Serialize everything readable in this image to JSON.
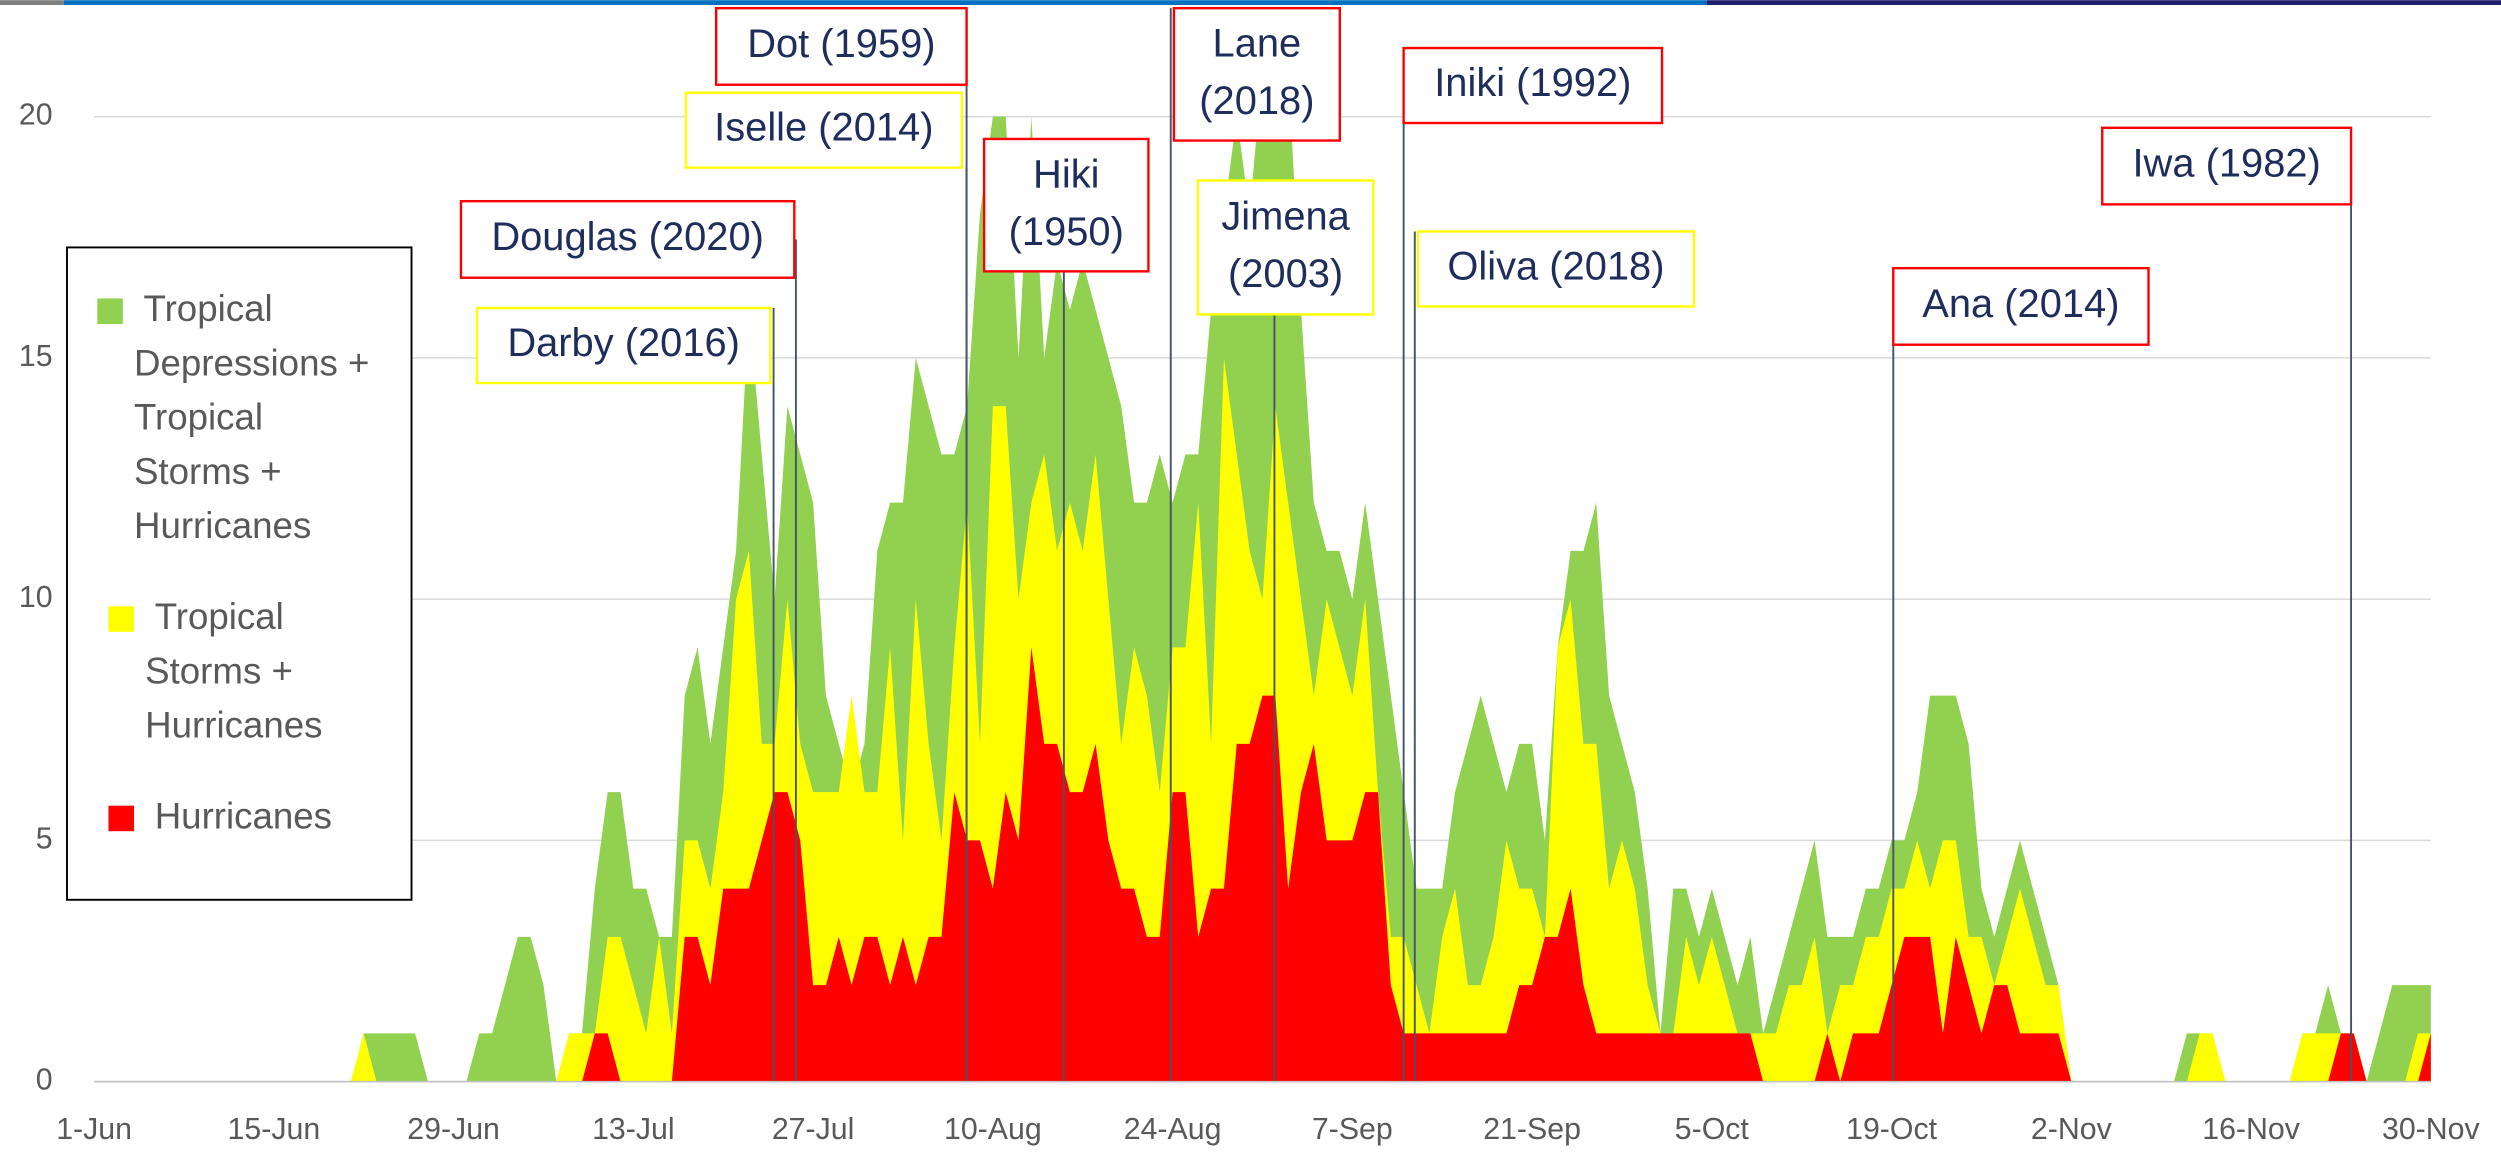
{
  "chart_data": {
    "type": "area",
    "categories": [
      "1-Jun",
      null,
      null,
      null,
      null,
      null,
      null,
      null,
      null,
      null,
      null,
      null,
      null,
      null,
      "15-Jun",
      null,
      null,
      null,
      null,
      null,
      null,
      null,
      null,
      null,
      null,
      null,
      null,
      null,
      "29-Jun",
      null,
      null,
      null,
      null,
      null,
      null,
      null,
      null,
      null,
      null,
      null,
      null,
      null,
      "13-Jul",
      null,
      null,
      null,
      null,
      null,
      null,
      null,
      null,
      null,
      null,
      null,
      null,
      null,
      "27-Jul",
      null,
      null,
      null,
      null,
      null,
      null,
      null,
      null,
      null,
      null,
      null,
      null,
      null,
      "10-Aug",
      null,
      null,
      null,
      null,
      null,
      null,
      null,
      null,
      null,
      null,
      null,
      null,
      null,
      "24-Aug",
      null,
      null,
      null,
      null,
      null,
      null,
      null,
      null,
      null,
      null,
      null,
      null,
      null,
      "7-Sep",
      null,
      null,
      null,
      null,
      null,
      null,
      null,
      null,
      null,
      null,
      null,
      null,
      null,
      "21-Sep",
      null,
      null,
      null,
      null,
      null,
      null,
      null,
      null,
      null,
      null,
      null,
      null,
      null,
      "5-Oct",
      null,
      null,
      null,
      null,
      null,
      null,
      null,
      null,
      null,
      null,
      null,
      null,
      null,
      "19-Oct",
      null,
      null,
      null,
      null,
      null,
      null,
      null,
      null,
      null,
      null,
      null,
      null,
      null,
      "2-Nov",
      null,
      null,
      null,
      null,
      null,
      null,
      null,
      null,
      null,
      null,
      null,
      null,
      null,
      "16-Nov",
      null,
      null,
      null,
      null,
      null,
      null,
      null,
      null,
      null,
      null,
      null,
      null,
      null,
      "30-Nov"
    ],
    "series": [
      {
        "name": "Tropical Depressions + Tropical Storms + Hurricanes",
        "color": "#92d050",
        "values": [
          0,
          0,
          0,
          0,
          0,
          0,
          0,
          0,
          0,
          0,
          0,
          0,
          0,
          0,
          0,
          0,
          0,
          0,
          0,
          0,
          0,
          1,
          1,
          1,
          1,
          1,
          0,
          0,
          0,
          0,
          1,
          1,
          2,
          3,
          3,
          2,
          0,
          1,
          1,
          4,
          6,
          6,
          4,
          4,
          3,
          3,
          8,
          9,
          7,
          9,
          11,
          16,
          13,
          10,
          14,
          13,
          12,
          8,
          7,
          6,
          7,
          11,
          12,
          12,
          15,
          14,
          13,
          13,
          14,
          18,
          20,
          20,
          15,
          20,
          15,
          17,
          16,
          17,
          16,
          15,
          14,
          12,
          12,
          13,
          12,
          13,
          13,
          16,
          18,
          20,
          18,
          21,
          20,
          21,
          16,
          12,
          11,
          11,
          10,
          12,
          10,
          8,
          6,
          4,
          4,
          4,
          6,
          7,
          8,
          7,
          6,
          7,
          7,
          5,
          9,
          11,
          11,
          12,
          8,
          7,
          6,
          4,
          1,
          4,
          4,
          3,
          4,
          3,
          2,
          3,
          1,
          2,
          3,
          4,
          5,
          3,
          3,
          3,
          4,
          4,
          5,
          5,
          6,
          8,
          8,
          8,
          7,
          4,
          3,
          4,
          5,
          4,
          3,
          2,
          0,
          0,
          0,
          0,
          0,
          0,
          0,
          0,
          0,
          1,
          1,
          1,
          0,
          0,
          0,
          0,
          0,
          0,
          1,
          1,
          2,
          1,
          1,
          0,
          1,
          2,
          2,
          2,
          2
        ]
      },
      {
        "name": "Tropical Storms + Hurricanes",
        "color": "#ffff00",
        "values": [
          0,
          0,
          0,
          0,
          0,
          0,
          0,
          0,
          0,
          0,
          0,
          0,
          0,
          0,
          0,
          0,
          0,
          0,
          0,
          0,
          0,
          1,
          0,
          0,
          0,
          0,
          0,
          0,
          0,
          0,
          0,
          0,
          0,
          0,
          0,
          0,
          0,
          1,
          1,
          1,
          3,
          3,
          2,
          1,
          3,
          1,
          5,
          5,
          4,
          6,
          10,
          11,
          7,
          7,
          10,
          7,
          6,
          6,
          6,
          8,
          6,
          6,
          9,
          5,
          10,
          7,
          5,
          9,
          12,
          7,
          14,
          14,
          10,
          12,
          13,
          11,
          12,
          11,
          13,
          10,
          7,
          9,
          8,
          6,
          9,
          9,
          12,
          7,
          15,
          13,
          11,
          10,
          14,
          12,
          10,
          8,
          10,
          9,
          8,
          10,
          6,
          3,
          3,
          2,
          1,
          3,
          4,
          2,
          2,
          3,
          5,
          4,
          4,
          3,
          9,
          10,
          7,
          7,
          4,
          5,
          4,
          2,
          1,
          1,
          3,
          2,
          3,
          2,
          1,
          1,
          1,
          1,
          2,
          2,
          3,
          1,
          2,
          2,
          3,
          3,
          4,
          4,
          5,
          4,
          5,
          5,
          3,
          3,
          2,
          3,
          4,
          3,
          2,
          2,
          0,
          0,
          0,
          0,
          0,
          0,
          0,
          0,
          0,
          0,
          1,
          1,
          0,
          0,
          0,
          0,
          0,
          0,
          1,
          1,
          1,
          1,
          1,
          0,
          0,
          0,
          0,
          1,
          1
        ]
      },
      {
        "name": "Hurricanes",
        "color": "#ff0000",
        "values": [
          0,
          0,
          0,
          0,
          0,
          0,
          0,
          0,
          0,
          0,
          0,
          0,
          0,
          0,
          0,
          0,
          0,
          0,
          0,
          0,
          0,
          0,
          0,
          0,
          0,
          0,
          0,
          0,
          0,
          0,
          0,
          0,
          0,
          0,
          0,
          0,
          0,
          0,
          0,
          1,
          1,
          0,
          0,
          0,
          0,
          0,
          3,
          3,
          2,
          4,
          4,
          4,
          5,
          6,
          6,
          5,
          2,
          2,
          3,
          2,
          3,
          3,
          2,
          3,
          2,
          3,
          3,
          6,
          5,
          5,
          4,
          6,
          5,
          9,
          7,
          7,
          6,
          6,
          7,
          5,
          4,
          4,
          3,
          3,
          6,
          6,
          3,
          4,
          4,
          7,
          7,
          8,
          8,
          4,
          6,
          7,
          5,
          5,
          5,
          6,
          6,
          2,
          1,
          1,
          1,
          1,
          1,
          1,
          1,
          1,
          1,
          2,
          2,
          3,
          3,
          4,
          2,
          1,
          1,
          1,
          1,
          1,
          1,
          1,
          1,
          1,
          1,
          1,
          1,
          1,
          0,
          0,
          0,
          0,
          0,
          1,
          0,
          1,
          1,
          1,
          2,
          3,
          3,
          3,
          1,
          3,
          2,
          1,
          2,
          2,
          1,
          1,
          1,
          1,
          0,
          0,
          0,
          0,
          0,
          0,
          0,
          0,
          0,
          0,
          0,
          0,
          0,
          0,
          0,
          0,
          0,
          0,
          0,
          0,
          0,
          1,
          1,
          0,
          0,
          0,
          0,
          0,
          1
        ]
      }
    ],
    "ylim": [
      0,
      22
    ],
    "yticks": [
      0,
      5,
      10,
      15,
      20
    ],
    "grid": true,
    "legend": "left",
    "annotations": [
      {
        "text": "Dot (1959)",
        "color": "#ff0000"
      },
      {
        "text": "Iselle (2014)",
        "color": "#ffff00"
      },
      {
        "text": "Lane (2018)",
        "color": "#ff0000"
      },
      {
        "text": "Iniki (1992)",
        "color": "#ff0000"
      },
      {
        "text": "Hiki (1950)",
        "color": "#ff0000"
      },
      {
        "text": "Jimena (2003)",
        "color": "#ffff00"
      },
      {
        "text": "Douglas (2020)",
        "color": "#ff0000"
      },
      {
        "text": "Darby (2016)",
        "color": "#ffff00"
      },
      {
        "text": "Oliva (2018)",
        "color": "#ffff00"
      },
      {
        "text": "Iwa (1982)",
        "color": "#ff0000"
      },
      {
        "text": "Ana (2014)",
        "color": "#ff0000"
      }
    ]
  }
}
